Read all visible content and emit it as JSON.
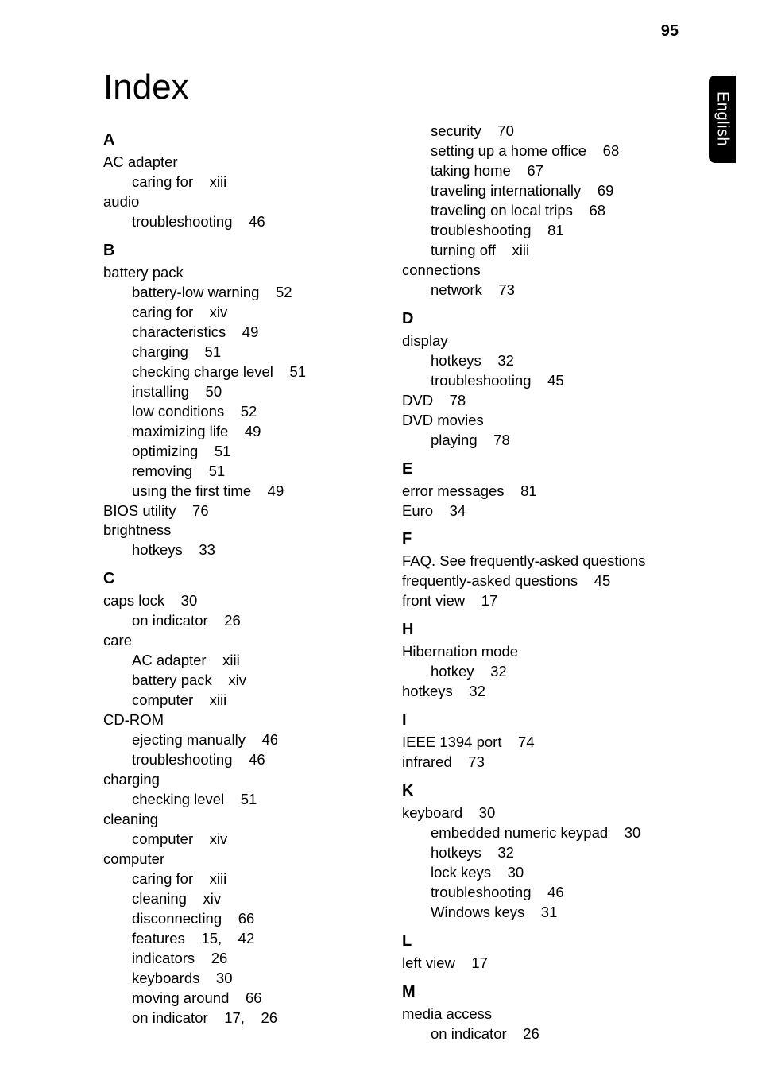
{
  "page_number": "95",
  "side_tab": "English",
  "title": "Index",
  "font": {
    "body_size_pt": 14,
    "title_size_pt": 33,
    "letter_size_pt": 15,
    "color": "#000000",
    "background": "#ffffff",
    "tab_bg": "#000000",
    "tab_fg": "#ffffff"
  },
  "left_column": [
    {
      "type": "letter",
      "text": "A"
    },
    {
      "type": "lvl0",
      "text": "AC adapter"
    },
    {
      "type": "lvl1",
      "text": "caring for    xiii"
    },
    {
      "type": "lvl0",
      "text": "audio"
    },
    {
      "type": "lvl1",
      "text": "troubleshooting    46"
    },
    {
      "type": "letter",
      "text": "B"
    },
    {
      "type": "lvl0",
      "text": "battery pack"
    },
    {
      "type": "lvl1",
      "text": "battery-low warning    52"
    },
    {
      "type": "lvl1",
      "text": "caring for    xiv"
    },
    {
      "type": "lvl1",
      "text": "characteristics    49"
    },
    {
      "type": "lvl1",
      "text": "charging    51"
    },
    {
      "type": "lvl1",
      "text": "checking charge level    51"
    },
    {
      "type": "lvl1",
      "text": "installing    50"
    },
    {
      "type": "lvl1",
      "text": "low conditions    52"
    },
    {
      "type": "lvl1",
      "text": "maximizing life    49"
    },
    {
      "type": "lvl1",
      "text": "optimizing    51"
    },
    {
      "type": "lvl1",
      "text": "removing    51"
    },
    {
      "type": "lvl1",
      "text": "using the first time    49"
    },
    {
      "type": "lvl0",
      "text": "BIOS utility    76"
    },
    {
      "type": "lvl0",
      "text": "brightness"
    },
    {
      "type": "lvl1",
      "text": "hotkeys    33"
    },
    {
      "type": "letter",
      "text": "C"
    },
    {
      "type": "lvl0",
      "text": "caps lock    30"
    },
    {
      "type": "lvl1",
      "text": "on indicator    26"
    },
    {
      "type": "lvl0",
      "text": "care"
    },
    {
      "type": "lvl1",
      "text": "AC adapter    xiii"
    },
    {
      "type": "lvl1",
      "text": "battery pack    xiv"
    },
    {
      "type": "lvl1",
      "text": "computer    xiii"
    },
    {
      "type": "lvl0",
      "text": "CD-ROM"
    },
    {
      "type": "lvl1",
      "text": "ejecting manually    46"
    },
    {
      "type": "lvl1",
      "text": "troubleshooting    46"
    },
    {
      "type": "lvl0",
      "text": "charging"
    },
    {
      "type": "lvl1",
      "text": "checking level    51"
    },
    {
      "type": "lvl0",
      "text": "cleaning"
    },
    {
      "type": "lvl1",
      "text": "computer    xiv"
    },
    {
      "type": "lvl0",
      "text": "computer"
    },
    {
      "type": "lvl1",
      "text": "caring for    xiii"
    },
    {
      "type": "lvl1",
      "text": "cleaning    xiv"
    },
    {
      "type": "lvl1",
      "text": "disconnecting    66"
    },
    {
      "type": "lvl1",
      "text": "features    15,    42"
    },
    {
      "type": "lvl1",
      "text": "indicators    26"
    },
    {
      "type": "lvl1",
      "text": "keyboards    30"
    },
    {
      "type": "lvl1",
      "text": "moving around    66"
    },
    {
      "type": "lvl1",
      "text": "on indicator    17,    26"
    }
  ],
  "right_column": [
    {
      "type": "lvl1",
      "text": "security    70"
    },
    {
      "type": "lvl1",
      "text": "setting up a home office    68"
    },
    {
      "type": "lvl1",
      "text": "taking home    67"
    },
    {
      "type": "lvl1",
      "text": "traveling internationally    69"
    },
    {
      "type": "lvl1",
      "text": "traveling on local trips    68"
    },
    {
      "type": "lvl1",
      "text": "troubleshooting    81"
    },
    {
      "type": "lvl1",
      "text": "turning off    xiii"
    },
    {
      "type": "lvl0",
      "text": "connections"
    },
    {
      "type": "lvl1",
      "text": "network    73"
    },
    {
      "type": "letter",
      "text": "D"
    },
    {
      "type": "lvl0",
      "text": "display"
    },
    {
      "type": "lvl1",
      "text": "hotkeys    32"
    },
    {
      "type": "lvl1",
      "text": "troubleshooting    45"
    },
    {
      "type": "lvl0",
      "text": "DVD    78"
    },
    {
      "type": "lvl0",
      "text": "DVD movies"
    },
    {
      "type": "lvl1",
      "text": "playing    78"
    },
    {
      "type": "letter",
      "text": "E"
    },
    {
      "type": "lvl0",
      "text": "error messages    81"
    },
    {
      "type": "lvl0",
      "text": "Euro    34"
    },
    {
      "type": "letter",
      "text": "F"
    },
    {
      "type": "lvl0",
      "text": "FAQ. See frequently-asked questions"
    },
    {
      "type": "lvl0",
      "text": "frequently-asked questions    45"
    },
    {
      "type": "lvl0",
      "text": "front view    17"
    },
    {
      "type": "letter",
      "text": "H"
    },
    {
      "type": "lvl0",
      "text": "Hibernation mode"
    },
    {
      "type": "lvl1",
      "text": "hotkey    32"
    },
    {
      "type": "lvl0",
      "text": "hotkeys    32"
    },
    {
      "type": "letter",
      "text": "I"
    },
    {
      "type": "lvl0",
      "text": "IEEE 1394 port    74"
    },
    {
      "type": "lvl0",
      "text": "infrared    73"
    },
    {
      "type": "letter",
      "text": "K"
    },
    {
      "type": "lvl0",
      "text": "keyboard    30"
    },
    {
      "type": "lvl1",
      "text": "embedded numeric keypad    30"
    },
    {
      "type": "lvl1",
      "text": "hotkeys    32"
    },
    {
      "type": "lvl1",
      "text": "lock keys    30"
    },
    {
      "type": "lvl1",
      "text": "troubleshooting    46"
    },
    {
      "type": "lvl1",
      "text": "Windows keys    31"
    },
    {
      "type": "letter",
      "text": "L"
    },
    {
      "type": "lvl0",
      "text": "left view    17"
    },
    {
      "type": "letter",
      "text": "M"
    },
    {
      "type": "lvl0",
      "text": "media access"
    },
    {
      "type": "lvl1",
      "text": "on indicator    26"
    }
  ]
}
